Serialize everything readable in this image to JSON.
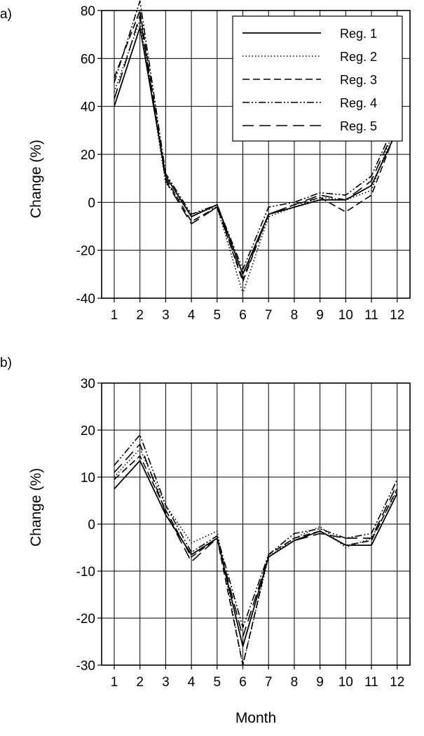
{
  "figure": {
    "xlabel": "Month"
  },
  "legend": {
    "entries": [
      "Reg. 1",
      "Reg. 2",
      "Reg. 3",
      "Reg. 4",
      "Reg. 5"
    ],
    "placement": "top-right of panel a"
  },
  "chart_data": [
    {
      "panel_label": "a)",
      "type": "line",
      "xlabel": "",
      "ylabel": "Change (%)",
      "x": [
        1,
        2,
        3,
        4,
        5,
        6,
        7,
        8,
        9,
        10,
        11,
        12
      ],
      "xlim": [
        1,
        12
      ],
      "ylim": [
        -40,
        80
      ],
      "yticks": [
        -40,
        -20,
        0,
        20,
        40,
        60,
        80
      ],
      "grid": true,
      "series": [
        {
          "name": "Reg. 1",
          "values": [
            40,
            73,
            11,
            -6,
            -1,
            -30,
            -5,
            -2,
            1,
            1,
            7,
            30
          ]
        },
        {
          "name": "Reg. 2",
          "values": [
            46,
            76,
            8,
            -5,
            -2,
            -38,
            -6,
            -2,
            2,
            1,
            5,
            34
          ]
        },
        {
          "name": "Reg. 3",
          "values": [
            52,
            80,
            10,
            -8,
            -2,
            -33,
            -5,
            -1,
            2,
            -4,
            3,
            31
          ]
        },
        {
          "name": "Reg. 4",
          "values": [
            50,
            84,
            12,
            -5,
            -1,
            -28,
            -2,
            0,
            4,
            3,
            11,
            35
          ]
        },
        {
          "name": "Reg. 5",
          "values": [
            43,
            78,
            9,
            -9,
            -2,
            -32,
            -5,
            -1,
            3,
            1,
            9,
            33
          ]
        }
      ]
    },
    {
      "panel_label": "b)",
      "type": "line",
      "xlabel": "Month",
      "ylabel": "Change (%)",
      "x": [
        1,
        2,
        3,
        4,
        5,
        6,
        7,
        8,
        9,
        10,
        11,
        12
      ],
      "xlim": [
        1,
        12
      ],
      "ylim": [
        -30,
        30
      ],
      "yticks": [
        -30,
        -20,
        -10,
        0,
        10,
        20,
        30
      ],
      "grid": true,
      "series": [
        {
          "name": "Reg. 1",
          "values": [
            7.5,
            13.5,
            2,
            -6.5,
            -3,
            -26,
            -7,
            -3.5,
            -1.5,
            -4.5,
            -4.5,
            6.5
          ]
        },
        {
          "name": "Reg. 2",
          "values": [
            10,
            16,
            4,
            -4,
            -1.5,
            -30,
            -7,
            -3,
            -0.5,
            -5,
            -3,
            7
          ]
        },
        {
          "name": "Reg. 3",
          "values": [
            9.5,
            14.5,
            3,
            -7,
            -3,
            -30,
            -6.5,
            -3,
            -1.5,
            -4.5,
            -3.5,
            7.5
          ]
        },
        {
          "name": "Reg. 4",
          "values": [
            12.5,
            19,
            4,
            -6,
            -2.5,
            -22,
            -6.5,
            -2,
            -1,
            -3,
            -2,
            9.5
          ]
        },
        {
          "name": "Reg. 5",
          "values": [
            11,
            17,
            2.5,
            -8,
            -3,
            -24,
            -7,
            -3.5,
            -2,
            -3,
            -3,
            8.5
          ]
        }
      ]
    }
  ]
}
